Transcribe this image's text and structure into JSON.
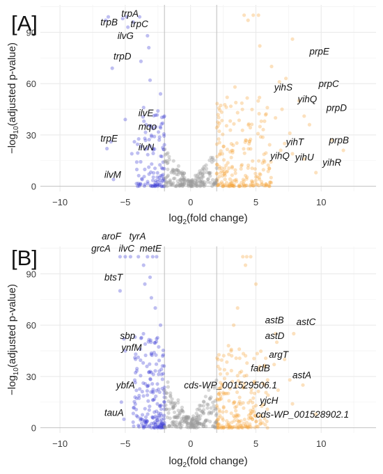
{
  "chart_data": [
    {
      "panel_label": "[A]",
      "type": "scatter",
      "xlabel": "log2(fold change)",
      "ylabel": "−log10(adjusted p-value)",
      "xlim": [
        -11.5,
        14.2
      ],
      "ylim": [
        -3,
        106
      ],
      "xticks": [
        "−10",
        "−5",
        "0",
        "5",
        "10"
      ],
      "xtick_values": [
        -10,
        -5,
        0,
        5,
        10
      ],
      "yticks": [
        "0",
        "30",
        "60",
        "90"
      ],
      "ytick_values": [
        0,
        30,
        60,
        90
      ],
      "threshold_lines_x": [
        -2,
        2
      ],
      "grid": true,
      "colors": {
        "down": "#3a3ad6",
        "up": "#f7a53a",
        "ns": "#9b9b9b"
      },
      "seed": 7,
      "series": [
        {
          "group": "down",
          "values": [
            [
              -6.5,
              97
            ],
            [
              -6.3,
              99
            ],
            [
              -5.2,
              98
            ],
            [
              -4.9,
              99
            ],
            [
              -4.8,
              93
            ],
            [
              -4.4,
              96
            ],
            [
              -3.9,
              99
            ],
            [
              -3.3,
              88
            ],
            [
              -3.8,
              73
            ],
            [
              -6.0,
              69
            ],
            [
              -3.2,
              81
            ],
            [
              -3.1,
              62
            ],
            [
              -3.6,
              46
            ],
            [
              -3.4,
              36
            ],
            [
              -3.5,
              28
            ],
            [
              -4.3,
              26
            ],
            [
              -4.5,
              19
            ],
            [
              -5.0,
              39
            ],
            [
              -6.1,
              26
            ],
            [
              -6.4,
              22
            ],
            [
              -5.9,
              4
            ],
            [
              -2.3,
              54
            ],
            [
              -2.5,
              44
            ]
          ]
        },
        {
          "group": "up",
          "values": [
            [
              4.1,
              100
            ],
            [
              4.8,
              100
            ],
            [
              5.2,
              100
            ],
            [
              4.4,
              97
            ],
            [
              5.3,
              82
            ],
            [
              7.8,
              86
            ],
            [
              6.2,
              70
            ],
            [
              7.3,
              63
            ],
            [
              6.8,
              61
            ],
            [
              8.3,
              50
            ],
            [
              7.0,
              45
            ],
            [
              8.7,
              41
            ],
            [
              9.1,
              36
            ],
            [
              6.5,
              40
            ],
            [
              7.6,
              31
            ],
            [
              7.2,
              25
            ],
            [
              6.9,
              21
            ],
            [
              7.8,
              19
            ],
            [
              8.7,
              16
            ],
            [
              10.8,
              27
            ],
            [
              9.6,
              8
            ],
            [
              11.7,
              21
            ],
            [
              3.4,
              58
            ],
            [
              2.8,
              52
            ],
            [
              3.6,
              43
            ]
          ]
        },
        {
          "group": "ns",
          "values": []
        }
      ],
      "generated_clouds": [
        {
          "group": "down",
          "x_range": [
            -4.2,
            -2.0
          ],
          "y_max": 42,
          "count": 110,
          "exponent": 2.3
        },
        {
          "group": "up",
          "x_range": [
            2.0,
            6.2
          ],
          "y_max": 52,
          "count": 210,
          "exponent": 2.2
        },
        {
          "group": "ns",
          "x_range": [
            -2.0,
            2.0
          ],
          "y_max": 22,
          "count": 190,
          "exponent": 1.4,
          "scale_by_distance": true
        }
      ],
      "annotations": [
        {
          "text": "trpA",
          "x": -5.3,
          "y": 99
        },
        {
          "text": "trpB",
          "x": -6.9,
          "y": 94
        },
        {
          "text": "trpC",
          "x": -4.6,
          "y": 93
        },
        {
          "text": "ilvG",
          "x": -5.6,
          "y": 86
        },
        {
          "text": "trpD",
          "x": -5.9,
          "y": 74
        },
        {
          "text": "ilvE",
          "x": -4.0,
          "y": 41
        },
        {
          "text": "mqo",
          "x": -4.0,
          "y": 33
        },
        {
          "text": "trpE",
          "x": -6.9,
          "y": 26
        },
        {
          "text": "ilvN",
          "x": -4.0,
          "y": 21
        },
        {
          "text": "ilvM",
          "x": -6.6,
          "y": 5
        },
        {
          "text": "prpE",
          "x": 9.1,
          "y": 77
        },
        {
          "text": "yihS",
          "x": 6.4,
          "y": 56
        },
        {
          "text": "prpC",
          "x": 9.8,
          "y": 58
        },
        {
          "text": "yihQ",
          "x": 8.2,
          "y": 49
        },
        {
          "text": "prpD",
          "x": 10.4,
          "y": 44
        },
        {
          "text": "yihT",
          "x": 7.3,
          "y": 24
        },
        {
          "text": "prpB",
          "x": 10.6,
          "y": 25
        },
        {
          "text": "yihQ",
          "x": 6.1,
          "y": 16
        },
        {
          "text": "yihU",
          "x": 8.0,
          "y": 15
        },
        {
          "text": "yihR",
          "x": 10.1,
          "y": 12
        }
      ]
    },
    {
      "panel_label": "[B]",
      "type": "scatter",
      "xlabel": "log2(fold change)",
      "ylabel": "−log10(adjusted p-value)",
      "xlim": [
        -11.5,
        14.2
      ],
      "ylim": [
        -3,
        106
      ],
      "xticks": [
        "−10",
        "−5",
        "0",
        "5",
        "10"
      ],
      "xtick_values": [
        -10,
        -5,
        0,
        5,
        10
      ],
      "yticks": [
        "0",
        "30",
        "60",
        "90"
      ],
      "ytick_values": [
        0,
        30,
        60,
        90
      ],
      "threshold_lines_x": [
        -2,
        2
      ],
      "grid": true,
      "colors": {
        "down": "#3a3ad6",
        "up": "#f7a53a",
        "ns": "#9b9b9b"
      },
      "seed": 21,
      "series": [
        {
          "group": "down",
          "values": [
            [
              -5.4,
              100
            ],
            [
              -5.0,
              100
            ],
            [
              -4.6,
              100
            ],
            [
              -4.0,
              100
            ],
            [
              -3.3,
              100
            ],
            [
              -2.9,
              100
            ],
            [
              -2.6,
              100
            ],
            [
              -3.6,
              95
            ],
            [
              -3.1,
              88
            ],
            [
              -3.5,
              84
            ],
            [
              -5.4,
              80
            ],
            [
              -3.0,
              76
            ],
            [
              -2.7,
              70
            ],
            [
              -5.1,
              52
            ],
            [
              -5.0,
              45
            ],
            [
              -4.2,
              43
            ],
            [
              -5.3,
              15
            ],
            [
              -5.1,
              5
            ],
            [
              -2.3,
              60
            ],
            [
              -2.6,
              52
            ]
          ]
        },
        {
          "group": "up",
          "values": [
            [
              4.0,
              100
            ],
            [
              4.3,
              100
            ],
            [
              4.6,
              100
            ],
            [
              4.2,
              95
            ],
            [
              5.0,
              84
            ],
            [
              6.5,
              55
            ],
            [
              7.9,
              55
            ],
            [
              6.6,
              50
            ],
            [
              7.2,
              40
            ],
            [
              6.4,
              37
            ],
            [
              7.6,
              28
            ],
            [
              5.9,
              28
            ],
            [
              8.6,
              25
            ],
            [
              6.7,
              22
            ],
            [
              7.8,
              14
            ],
            [
              9.6,
              8
            ],
            [
              3.3,
              60
            ],
            [
              3.6,
              70
            ],
            [
              2.9,
              48
            ]
          ]
        },
        {
          "group": "ns",
          "values": []
        }
      ],
      "generated_clouds": [
        {
          "group": "down",
          "x_range": [
            -4.4,
            -2.0
          ],
          "y_max": 55,
          "count": 190,
          "exponent": 2.0
        },
        {
          "group": "up",
          "x_range": [
            2.0,
            6.0
          ],
          "y_max": 46,
          "count": 210,
          "exponent": 2.3
        },
        {
          "group": "ns",
          "x_range": [
            -2.0,
            2.0
          ],
          "y_max": 30,
          "count": 210,
          "exponent": 1.35,
          "scale_by_distance": true
        }
      ],
      "annotations": [
        {
          "text": "aroF",
          "x": -6.8,
          "y": 110
        },
        {
          "text": "tyrA",
          "x": -4.7,
          "y": 110
        },
        {
          "text": "grcA",
          "x": -7.6,
          "y": 103
        },
        {
          "text": "ilvC",
          "x": -5.5,
          "y": 103
        },
        {
          "text": "metE",
          "x": -3.9,
          "y": 103
        },
        {
          "text": "btsT",
          "x": -6.6,
          "y": 86
        },
        {
          "text": "sbp",
          "x": -5.4,
          "y": 52
        },
        {
          "text": "ynfM",
          "x": -5.3,
          "y": 45
        },
        {
          "text": "ybfA",
          "x": -5.7,
          "y": 23
        },
        {
          "text": "tauA",
          "x": -6.6,
          "y": 7
        },
        {
          "text": "astB",
          "x": 5.7,
          "y": 61
        },
        {
          "text": "astC",
          "x": 8.1,
          "y": 60
        },
        {
          "text": "astD",
          "x": 5.7,
          "y": 52
        },
        {
          "text": "argT",
          "x": 6.0,
          "y": 41
        },
        {
          "text": "fadB",
          "x": 4.6,
          "y": 33
        },
        {
          "text": "astA",
          "x": 7.8,
          "y": 29
        },
        {
          "text": "cds-WP_001529506.1",
          "x": -0.5,
          "y": 23
        },
        {
          "text": "yjcH",
          "x": 5.3,
          "y": 14
        },
        {
          "text": "cds-WP_001528902.1",
          "x": 5.0,
          "y": 6
        }
      ]
    }
  ]
}
